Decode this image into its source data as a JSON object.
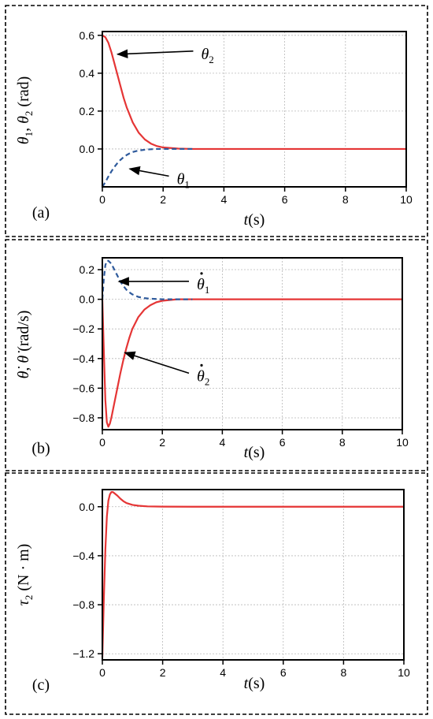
{
  "chart_data": [
    {
      "type": "line",
      "panel_label": "(a)",
      "xlabel_var": "t",
      "xlabel_unit": "(s)",
      "ylabel_parts": [
        "θ",
        "1",
        ", ",
        "θ",
        "2",
        " (rad)"
      ],
      "xlim": [
        0,
        10
      ],
      "ylim": [
        -0.2,
        0.62
      ],
      "xticks": [
        "0",
        "2",
        "4",
        "6",
        "8",
        "10"
      ],
      "yticks": [
        "0.6",
        "0.4",
        "0.2",
        "0.0"
      ],
      "grid": true,
      "series": [
        {
          "name": "θ2",
          "style": "solid",
          "color": "#e53535",
          "x": [
            0,
            0.1,
            0.2,
            0.3,
            0.4,
            0.5,
            0.6,
            0.7,
            0.8,
            0.9,
            1.0,
            1.2,
            1.4,
            1.6,
            1.8,
            2.0,
            2.5,
            3.0,
            4.0,
            6.0,
            8.0,
            10.0
          ],
          "y": [
            0.6,
            0.59,
            0.56,
            0.51,
            0.45,
            0.39,
            0.33,
            0.27,
            0.22,
            0.18,
            0.14,
            0.085,
            0.05,
            0.028,
            0.015,
            0.008,
            0.002,
            0.0,
            0.0,
            0.0,
            0.0,
            0.0
          ]
        },
        {
          "name": "θ1",
          "style": "dashed",
          "color": "#2e5a9c",
          "x": [
            0,
            0.1,
            0.2,
            0.3,
            0.4,
            0.5,
            0.6,
            0.7,
            0.8,
            0.9,
            1.0,
            1.2,
            1.4,
            1.6,
            1.8,
            2.0,
            2.5,
            3.0
          ],
          "y": [
            -0.2,
            -0.175,
            -0.145,
            -0.118,
            -0.094,
            -0.074,
            -0.057,
            -0.043,
            -0.032,
            -0.023,
            -0.016,
            -0.008,
            -0.004,
            -0.0015,
            0.0,
            0.0,
            0.0,
            0.0
          ]
        }
      ],
      "annotations": [
        {
          "base": "θ",
          "sub": "2",
          "dot": false,
          "tx": 3.25,
          "ty": 0.5,
          "ax": 0.5,
          "ay": 0.5
        },
        {
          "base": "θ",
          "sub": "1",
          "dot": false,
          "tx": 2.45,
          "ty": -0.16,
          "ax": 0.9,
          "ay": -0.105
        }
      ]
    },
    {
      "type": "line",
      "panel_label": "(b)",
      "xlabel_var": "t",
      "xlabel_unit": "(s)",
      "ylabel_parts": [
        "θ̇",
        "",
        ", ",
        "θ̇",
        "",
        " (rad/s)"
      ],
      "xlim": [
        0,
        10
      ],
      "ylim": [
        -0.88,
        0.28
      ],
      "xticks": [
        "0",
        "2",
        "4",
        "6",
        "8",
        "10"
      ],
      "yticks": [
        "0.2",
        "0.0",
        "−0.2",
        "−0.4",
        "−0.6",
        "−0.8"
      ],
      "grid": true,
      "series": [
        {
          "name": "θ̇2",
          "style": "solid",
          "color": "#e53535",
          "x": [
            0,
            0.05,
            0.1,
            0.15,
            0.2,
            0.25,
            0.3,
            0.4,
            0.5,
            0.6,
            0.7,
            0.8,
            0.9,
            1.0,
            1.2,
            1.4,
            1.6,
            1.8,
            2.0,
            2.5,
            3.0,
            4.0,
            6.0,
            8.0,
            10.0
          ],
          "y": [
            0.0,
            -0.35,
            -0.68,
            -0.83,
            -0.86,
            -0.84,
            -0.8,
            -0.7,
            -0.6,
            -0.5,
            -0.41,
            -0.33,
            -0.26,
            -0.2,
            -0.12,
            -0.07,
            -0.04,
            -0.02,
            -0.01,
            0.0,
            0.0,
            0.0,
            0.0,
            0.0,
            0.0
          ]
        },
        {
          "name": "θ̇1",
          "style": "dashed",
          "color": "#2e5a9c",
          "x": [
            0,
            0.05,
            0.1,
            0.15,
            0.2,
            0.3,
            0.4,
            0.5,
            0.6,
            0.7,
            0.8,
            0.9,
            1.0,
            1.2,
            1.4,
            1.6,
            1.8,
            2.0,
            2.5,
            3.0
          ],
          "y": [
            0.0,
            0.14,
            0.23,
            0.26,
            0.26,
            0.24,
            0.2,
            0.16,
            0.12,
            0.09,
            0.065,
            0.047,
            0.033,
            0.016,
            0.008,
            0.004,
            0.002,
            0.0,
            0.0,
            0.0
          ]
        }
      ],
      "annotations": [
        {
          "base": "θ",
          "sub": "1",
          "dot": true,
          "tx": 3.15,
          "ty": 0.1,
          "ax": 0.55,
          "ay": 0.12
        },
        {
          "base": "θ",
          "sub": "2",
          "dot": true,
          "tx": 3.15,
          "ty": -0.52,
          "ax": 0.75,
          "ay": -0.36
        }
      ]
    },
    {
      "type": "line",
      "panel_label": "(c)",
      "xlabel_var": "t",
      "xlabel_unit": "(s)",
      "ylabel_parts": [
        "τ",
        "2",
        " (N · m)",
        "",
        "",
        ""
      ],
      "xlim": [
        0,
        10
      ],
      "ylim": [
        -1.25,
        0.14
      ],
      "xticks": [
        "0",
        "2",
        "4",
        "6",
        "8",
        "10"
      ],
      "yticks": [
        "0.0",
        "−0.4",
        "−0.8",
        "−1.2"
      ],
      "grid": true,
      "series": [
        {
          "name": "τ2",
          "style": "solid",
          "color": "#e53535",
          "x": [
            0,
            0.05,
            0.1,
            0.15,
            0.2,
            0.25,
            0.3,
            0.35,
            0.4,
            0.5,
            0.6,
            0.7,
            0.8,
            1.0,
            1.2,
            1.5,
            2.0,
            3.0,
            4.0,
            6.0,
            8.0,
            10.0
          ],
          "y": [
            -1.23,
            -0.75,
            -0.35,
            -0.08,
            0.05,
            0.1,
            0.12,
            0.12,
            0.11,
            0.09,
            0.065,
            0.045,
            0.03,
            0.015,
            0.008,
            0.003,
            0.001,
            0.0,
            0.0,
            0.0,
            0.0,
            0.0
          ]
        }
      ],
      "annotations": []
    }
  ]
}
